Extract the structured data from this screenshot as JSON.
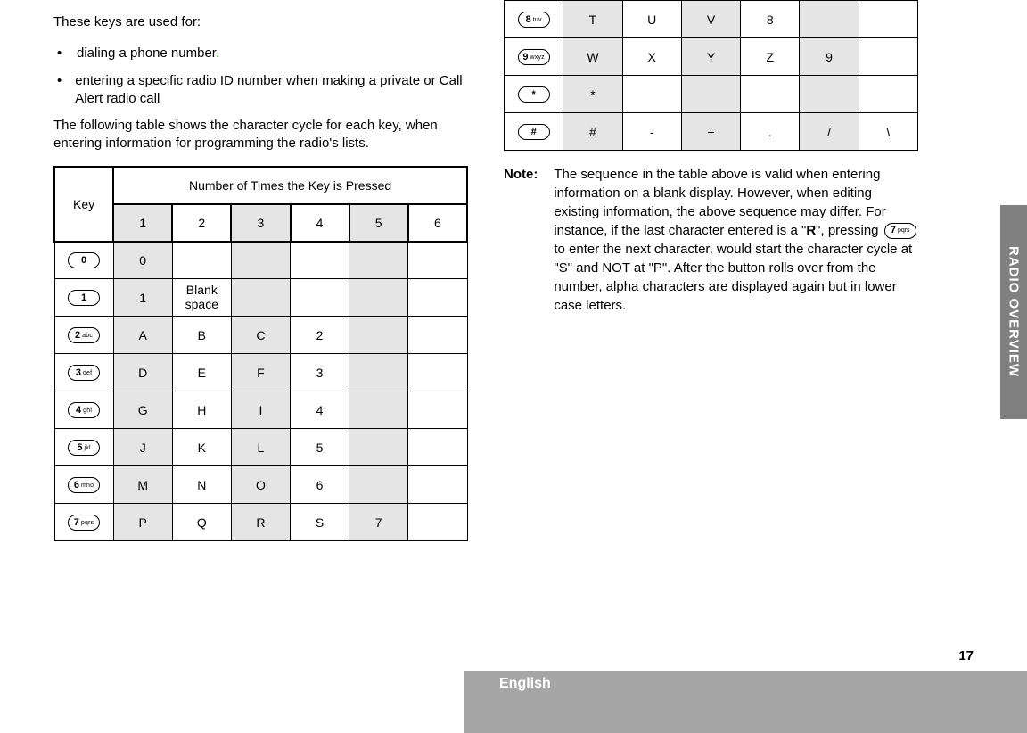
{
  "sideTab": "RADIO OVERVIEW",
  "pageNumber": "17",
  "language": "English",
  "left": {
    "intro": "These keys are used for:",
    "bullets": [
      "dialing a phone number",
      "entering a specific radio ID number when making a private or Call Alert radio call"
    ],
    "greenDot": ".",
    "para": "The following table shows the character cycle for each key, when entering information for programming the radio's lists.",
    "tableHeader": {
      "key": "Key",
      "presses": "Number of Times the Key is Pressed",
      "cols": [
        "1",
        "2",
        "3",
        "4",
        "5",
        "6"
      ]
    },
    "rows": [
      {
        "key": {
          "num": "0",
          "lbl": ""
        },
        "cells": [
          "0",
          "",
          "",
          "",
          "",
          ""
        ]
      },
      {
        "key": {
          "num": "1",
          "lbl": ""
        },
        "cells": [
          "1",
          "Blank space",
          "",
          "",
          "",
          ""
        ],
        "small2": true
      },
      {
        "key": {
          "num": "2",
          "lbl": "abc"
        },
        "cells": [
          "A",
          "B",
          "C",
          "2",
          "",
          ""
        ]
      },
      {
        "key": {
          "num": "3",
          "lbl": "def"
        },
        "cells": [
          "D",
          "E",
          "F",
          "3",
          "",
          ""
        ]
      },
      {
        "key": {
          "num": "4",
          "lbl": "ghi"
        },
        "cells": [
          "G",
          "H",
          "I",
          "4",
          "",
          ""
        ]
      },
      {
        "key": {
          "num": "5",
          "lbl": "jkl"
        },
        "cells": [
          "J",
          "K",
          "L",
          "5",
          "",
          ""
        ]
      },
      {
        "key": {
          "num": "6",
          "lbl": "mno"
        },
        "cells": [
          "M",
          "N",
          "O",
          "6",
          "",
          ""
        ]
      },
      {
        "key": {
          "num": "7",
          "lbl": "pqrs"
        },
        "cells": [
          "P",
          "Q",
          "R",
          "S",
          "7",
          ""
        ]
      }
    ]
  },
  "right": {
    "rows": [
      {
        "key": {
          "num": "8",
          "lbl": "tuv"
        },
        "cells": [
          "T",
          "U",
          "V",
          "8",
          "",
          ""
        ]
      },
      {
        "key": {
          "num": "9",
          "lbl": "wxyz"
        },
        "cells": [
          "W",
          "X",
          "Y",
          "Z",
          "9",
          ""
        ]
      },
      {
        "key": {
          "num": "*",
          "lbl": ""
        },
        "cells": [
          "*",
          "",
          "",
          "",
          "",
          ""
        ]
      },
      {
        "key": {
          "num": "#",
          "lbl": ""
        },
        "cells": [
          "#",
          "-",
          "+",
          ".",
          "/",
          "\\"
        ]
      }
    ],
    "noteLabel": "Note:",
    "noteParts": {
      "a": "The sequence in the table above is valid when entering information on a blank display. However, when editing existing information, the above sequence may differ. For instance, if the last character entered is a \"",
      "b": "R",
      "c": "\", pressing ",
      "inlineKey": {
        "num": "7",
        "lbl": "pqrs"
      },
      "d": " to enter the next character, would start the character cycle at \"S\" and NOT at \"P\". After the button rolls over from the number, alpha characters are displayed again but in lower case letters."
    }
  }
}
